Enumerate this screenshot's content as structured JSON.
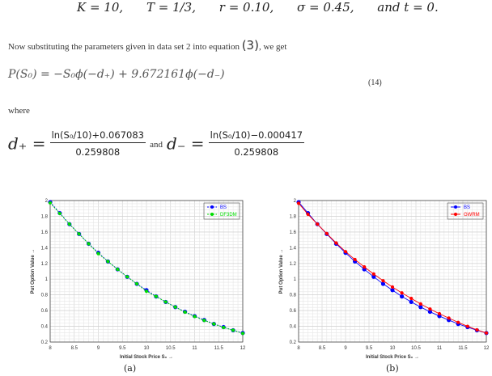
{
  "params": [
    "K = 10,",
    "T = 1/3,",
    "r = 0.10,",
    "σ = 0.45,",
    "and t = 0."
  ],
  "intro": "Now substituting the parameters given in data set 2 into equation",
  "eq_ref": "(3)",
  "intro_end": ", we get",
  "equation": "P(S₀) = −S₀ϕ(−d₊) + 9.672161ϕ(−d₋)",
  "eq_number": "(14)",
  "where": "where",
  "dplus": {
    "lhs": "d₊ =",
    "num": "ln(S₀/10)+0.067083",
    "den": "0.259808"
  },
  "and": "and",
  "dminus": {
    "lhs": "d₋ =",
    "num": "ln(S₀/10)−0.000417",
    "den": "0.259808"
  },
  "captions": [
    "(a)",
    "(b)"
  ],
  "chart_data": [
    {
      "type": "line",
      "xlabel": "Initial Stock Price S₀ →",
      "ylabel": "Put Option Value →",
      "xlim": [
        8,
        12
      ],
      "ylim": [
        0.2,
        2
      ],
      "grid": true,
      "legend": "top-right",
      "xticks": [
        "8",
        "8.5",
        "9",
        "9.5",
        "10",
        "10.5",
        "11",
        "11.5",
        "12"
      ],
      "yticks": [
        "0.2",
        "0.4",
        "0.6",
        "0.8",
        "1",
        "1.2",
        "1.4",
        "1.6",
        "1.8",
        "2"
      ],
      "x": [
        8,
        8.2,
        8.4,
        8.6,
        8.8,
        9,
        9.2,
        9.4,
        9.6,
        9.8,
        10,
        10.2,
        10.4,
        10.6,
        10.8,
        11,
        11.2,
        11.4,
        11.6,
        11.8,
        12
      ],
      "series": [
        {
          "name": "BS",
          "color": "#0000ff",
          "dashed": true,
          "values": [
            1.98,
            1.84,
            1.7,
            1.575,
            1.45,
            1.335,
            1.225,
            1.125,
            1.03,
            0.94,
            0.86,
            0.78,
            0.71,
            0.645,
            0.585,
            0.53,
            0.48,
            0.43,
            0.39,
            0.35,
            0.315
          ]
        },
        {
          "name": "DF3DM",
          "color": "#00dd00",
          "dashed": true,
          "values": [
            1.97,
            1.835,
            1.7,
            1.575,
            1.45,
            1.325,
            1.225,
            1.125,
            1.03,
            0.94,
            0.845,
            0.78,
            0.71,
            0.645,
            0.58,
            0.525,
            0.475,
            0.43,
            0.385,
            0.35,
            0.31
          ]
        }
      ]
    },
    {
      "type": "line",
      "xlabel": "Initial Stock Price S₀ →",
      "ylabel": "Put Option Value →",
      "xlim": [
        8,
        12
      ],
      "ylim": [
        0.2,
        2
      ],
      "grid": true,
      "legend": "top-right",
      "xticks": [
        "8",
        "8.5",
        "9",
        "9.5",
        "10",
        "10.5",
        "11",
        "11.5",
        "12"
      ],
      "yticks": [
        "0.2",
        "0.4",
        "0.6",
        "0.8",
        "1",
        "1.2",
        "1.4",
        "1.6",
        "1.8",
        "2"
      ],
      "x": [
        8,
        8.2,
        8.4,
        8.6,
        8.8,
        9,
        9.2,
        9.4,
        9.6,
        9.8,
        10,
        10.2,
        10.4,
        10.6,
        10.8,
        11,
        11.2,
        11.4,
        11.6,
        11.8,
        12
      ],
      "series": [
        {
          "name": "BS",
          "color": "#0000ff",
          "dashed": false,
          "values": [
            1.98,
            1.84,
            1.7,
            1.575,
            1.45,
            1.335,
            1.225,
            1.125,
            1.03,
            0.94,
            0.86,
            0.78,
            0.71,
            0.645,
            0.585,
            0.53,
            0.48,
            0.43,
            0.39,
            0.35,
            0.315
          ]
        },
        {
          "name": "GWRM",
          "color": "#ff0000",
          "dashed": false,
          "values": [
            1.965,
            1.825,
            1.7,
            1.58,
            1.46,
            1.35,
            1.25,
            1.155,
            1.065,
            0.98,
            0.9,
            0.825,
            0.755,
            0.685,
            0.62,
            0.56,
            0.505,
            0.45,
            0.4,
            0.355,
            0.315
          ]
        }
      ]
    }
  ]
}
